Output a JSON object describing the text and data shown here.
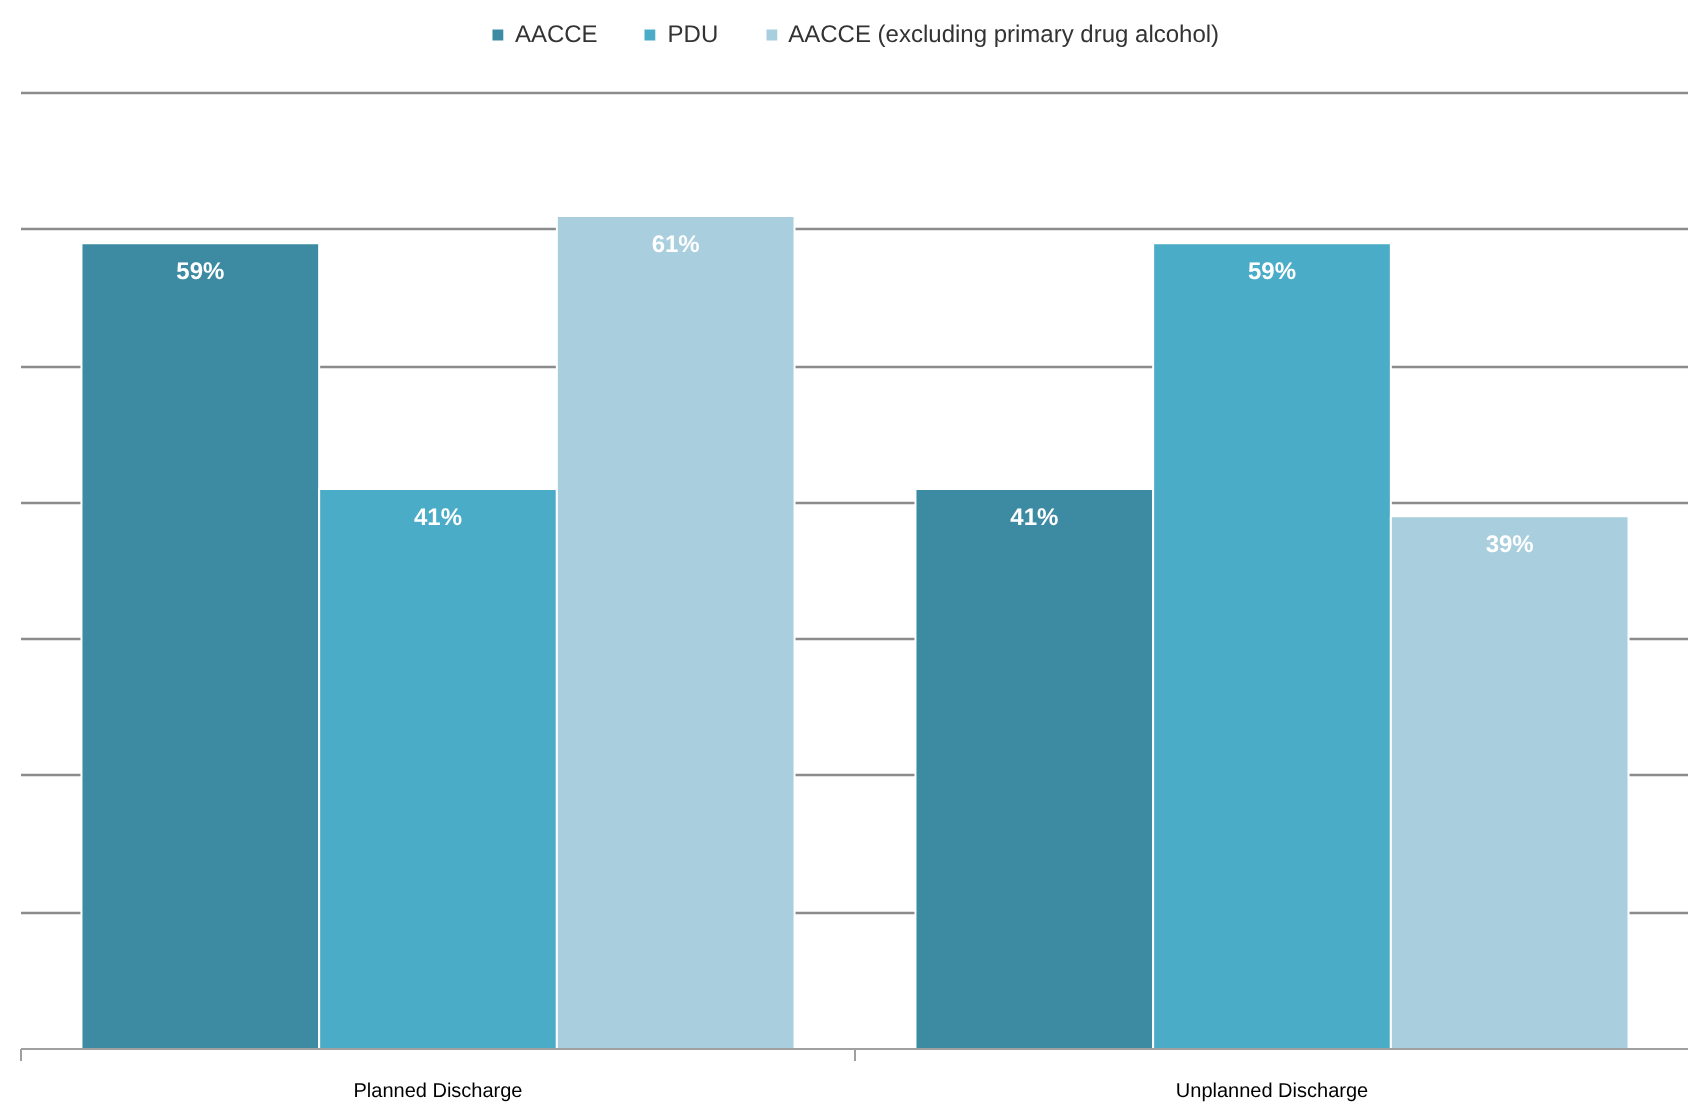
{
  "chart_data": {
    "type": "bar",
    "categories": [
      "Planned Discharge",
      "Unplanned Discharge"
    ],
    "series": [
      {
        "name": "AACCE",
        "color": "#3d8ba2",
        "values": [
          59,
          41
        ],
        "value_labels": [
          "59%",
          "41%"
        ]
      },
      {
        "name": "PDU",
        "color": "#4aacc6",
        "values": [
          41,
          59
        ],
        "value_labels": [
          "41%",
          "59%"
        ]
      },
      {
        "name": "AACCE (excluding primary drug alcohol)",
        "color": "#a9cedd",
        "values": [
          61,
          39
        ],
        "value_labels": [
          "61%",
          "39%"
        ]
      }
    ],
    "ylim": [
      0,
      70
    ],
    "yticks": [
      {
        "value": 0,
        "label": null
      },
      {
        "value": 10,
        "label": null
      },
      {
        "value": 20,
        "label": null
      },
      {
        "value": 30,
        "label": null
      },
      {
        "value": 40,
        "label": null
      },
      {
        "value": 50,
        "label": null
      },
      {
        "value": 60,
        "label": null
      },
      {
        "value": 70,
        "label": null
      }
    ],
    "tick_labels": "x",
    "grid": "y",
    "legend": "top"
  }
}
